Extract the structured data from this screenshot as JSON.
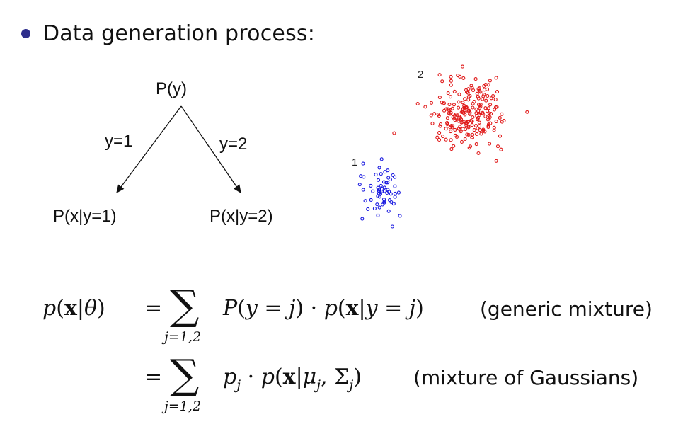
{
  "heading": "Data generation process:",
  "tree": {
    "root": "P(y)",
    "edge_left": "y=1",
    "edge_right": "y=2",
    "leaf_left": "P(x|y=1)",
    "leaf_right": "P(x|y=2)"
  },
  "clusters": {
    "label_1": "1",
    "label_2": "2",
    "color_1": "#1a1ae0",
    "color_2": "#e01a1a"
  },
  "equations": {
    "lhs": "p(x|θ)",
    "eq1_sign": "=",
    "eq1_sum_index": "j=1,2",
    "eq1_note": "(generic mixture)",
    "eq2_sign": "=",
    "eq2_sum_index": "j=1,2",
    "eq2_note": "(mixture of Gaussians)"
  }
}
